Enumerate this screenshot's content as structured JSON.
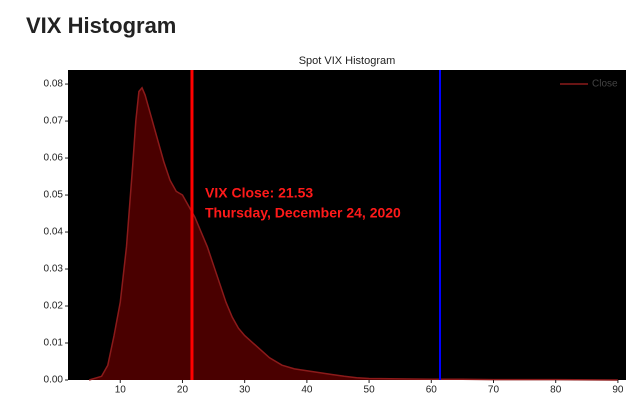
{
  "heading": "VIX Histogram",
  "chart_data": {
    "type": "area",
    "title": "Spot VIX Histogram",
    "x": [
      5,
      7,
      8,
      9,
      10,
      11,
      12,
      12.5,
      13,
      13.5,
      14,
      15,
      16,
      17,
      18,
      19,
      20,
      21,
      22,
      23,
      24,
      25,
      26,
      27,
      28,
      29,
      30,
      32,
      34,
      36,
      38,
      40,
      42,
      44,
      46,
      48,
      50,
      55,
      60,
      65,
      70,
      80,
      90
    ],
    "series": [
      {
        "name": "Close",
        "color": "#4a0000",
        "edge_color": "#8b1a1a",
        "values": [
          0,
          0.001,
          0.004,
          0.012,
          0.021,
          0.036,
          0.058,
          0.07,
          0.078,
          0.079,
          0.077,
          0.071,
          0.065,
          0.059,
          0.054,
          0.051,
          0.05,
          0.047,
          0.044,
          0.04,
          0.036,
          0.031,
          0.026,
          0.021,
          0.017,
          0.014,
          0.012,
          0.009,
          0.006,
          0.004,
          0.003,
          0.0025,
          0.002,
          0.0015,
          0.001,
          0.0006,
          0.0004,
          0.0003,
          0.0002,
          0.0002,
          0.0001,
          0.0001,
          0
        ]
      }
    ],
    "vlines": [
      {
        "value": 21.53,
        "color": "#ff0000"
      },
      {
        "value": 61.4,
        "color": "#0000ff"
      }
    ],
    "annotations": [
      "VIX Close: 21.53",
      "Thursday, December 24, 2020"
    ],
    "annotation_color": "#ff1a1a",
    "background": "#000000",
    "xlim": [
      1.6,
      91.3
    ],
    "xticks": [
      10,
      20,
      30,
      40,
      50,
      60,
      70,
      80,
      90
    ],
    "ylim": [
      0,
      0.0838
    ],
    "yticks": [
      {
        "value": 0,
        "label": "0.00"
      },
      0.01,
      0.02,
      0.03,
      0.04,
      0.05,
      0.06,
      0.07,
      0.08
    ],
    "legend": "upper right"
  }
}
